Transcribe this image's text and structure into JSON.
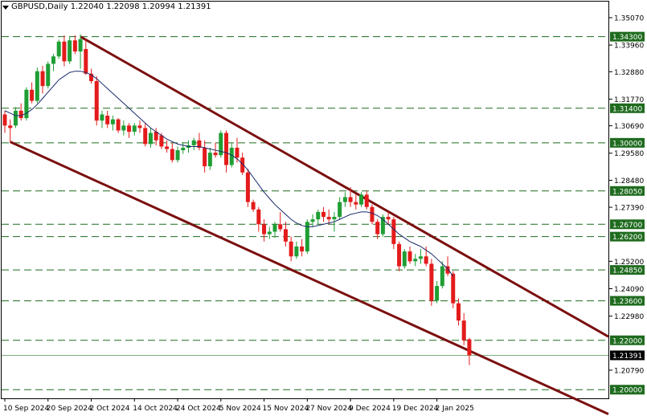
{
  "header": {
    "symbol": "GBPUSD,Daily",
    "ohlc": "1.22040 1.22098 1.20994 1.21391"
  },
  "colors": {
    "bull": "#1f9e34",
    "bear": "#e31b1b",
    "channel": "#7b0f0f",
    "ma": "#1a2a6c",
    "level": "#1f6b1f",
    "current_price": "#7fae7f"
  },
  "chart_data": {
    "type": "candlestick",
    "symbol": "GBPUSD",
    "timeframe": "Daily",
    "last": {
      "open": 1.2204,
      "high": 1.22098,
      "low": 1.20994,
      "close": 1.21391
    },
    "ylim": [
      1.1965,
      1.3572
    ],
    "y_ticks": [
      1.3507,
      1.3396,
      1.3288,
      1.3177,
      1.3069,
      1.2958,
      1.2848,
      1.2739,
      1.252,
      1.2409,
      1.2298,
      1.2079
    ],
    "y_tick_labels": [
      "1.35070",
      "1.33960",
      "1.32880",
      "1.31770",
      "1.30690",
      "1.29580",
      "1.28480",
      "1.27390",
      "1.25200",
      "1.24090",
      "1.22980",
      "1.20790"
    ],
    "x_tick_labels": [
      {
        "label": "10 Sep 2024",
        "bar": 0
      },
      {
        "label": "20 Sep 2024",
        "bar": 8
      },
      {
        "label": "2 Oct 2024",
        "bar": 16
      },
      {
        "label": "14 Oct 2024",
        "bar": 24
      },
      {
        "label": "24 Oct 2024",
        "bar": 32
      },
      {
        "label": "5 Nov 2024",
        "bar": 40
      },
      {
        "label": "15 Nov 2024",
        "bar": 48
      },
      {
        "label": "27 Nov 2024",
        "bar": 56
      },
      {
        "label": "9 Dec 2024",
        "bar": 64
      },
      {
        "label": "19 Dec 2024",
        "bar": 72
      },
      {
        "label": "2 Jan 2025",
        "bar": 80
      }
    ],
    "levels": [
      {
        "value": 1.343,
        "label": "1.34300"
      },
      {
        "value": 1.314,
        "label": "1.31400"
      },
      {
        "value": 1.3,
        "label": "1.30000"
      },
      {
        "value": 1.2805,
        "label": "1.28050"
      },
      {
        "value": 1.267,
        "label": "1.26700"
      },
      {
        "value": 1.262,
        "label": "1.26200"
      },
      {
        "value": 1.2485,
        "label": "1.24850"
      },
      {
        "value": 1.236,
        "label": "1.23600"
      },
      {
        "value": 1.22,
        "label": "1.22000"
      },
      {
        "value": 1.2,
        "label": "1.20000"
      }
    ],
    "current_price": {
      "value": 1.21391,
      "label": "1.21391"
    },
    "channel_lines": [
      {
        "name": "upper",
        "from": {
          "bar": 14,
          "price": 1.343
        },
        "to": {
          "bar": 93,
          "price": 1.2448
        }
      },
      {
        "name": "lower",
        "from": {
          "bar": 1,
          "price": 1.3004
        },
        "to": {
          "bar": 93,
          "price": 1.2088
        }
      }
    ],
    "candles": [
      {
        "o": 1.3115,
        "h": 1.313,
        "l": 1.304,
        "c": 1.307
      },
      {
        "o": 1.307,
        "h": 1.3095,
        "l": 1.3,
        "c": 1.306
      },
      {
        "o": 1.307,
        "h": 1.3145,
        "l": 1.306,
        "c": 1.313
      },
      {
        "o": 1.313,
        "h": 1.316,
        "l": 1.309,
        "c": 1.31
      },
      {
        "o": 1.31,
        "h": 1.3225,
        "l": 1.309,
        "c": 1.3215
      },
      {
        "o": 1.3215,
        "h": 1.3245,
        "l": 1.316,
        "c": 1.317
      },
      {
        "o": 1.317,
        "h": 1.3305,
        "l": 1.316,
        "c": 1.329
      },
      {
        "o": 1.329,
        "h": 1.3312,
        "l": 1.32,
        "c": 1.323
      },
      {
        "o": 1.323,
        "h": 1.333,
        "l": 1.322,
        "c": 1.332
      },
      {
        "o": 1.332,
        "h": 1.336,
        "l": 1.329,
        "c": 1.335
      },
      {
        "o": 1.335,
        "h": 1.3418,
        "l": 1.334,
        "c": 1.341
      },
      {
        "o": 1.341,
        "h": 1.3435,
        "l": 1.331,
        "c": 1.333
      },
      {
        "o": 1.333,
        "h": 1.343,
        "l": 1.332,
        "c": 1.3415
      },
      {
        "o": 1.3415,
        "h": 1.3435,
        "l": 1.336,
        "c": 1.337
      },
      {
        "o": 1.337,
        "h": 1.344,
        "l": 1.33,
        "c": 1.342
      },
      {
        "o": 1.338,
        "h": 1.342,
        "l": 1.3275,
        "c": 1.328
      },
      {
        "o": 1.328,
        "h": 1.33,
        "l": 1.324,
        "c": 1.325
      },
      {
        "o": 1.325,
        "h": 1.327,
        "l": 1.307,
        "c": 1.309
      },
      {
        "o": 1.309,
        "h": 1.313,
        "l": 1.306,
        "c": 1.3115
      },
      {
        "o": 1.311,
        "h": 1.313,
        "l": 1.306,
        "c": 1.3075
      },
      {
        "o": 1.3075,
        "h": 1.311,
        "l": 1.305,
        "c": 1.3095
      },
      {
        "o": 1.3095,
        "h": 1.31,
        "l": 1.304,
        "c": 1.305
      },
      {
        "o": 1.305,
        "h": 1.309,
        "l": 1.303,
        "c": 1.307
      },
      {
        "o": 1.307,
        "h": 1.308,
        "l": 1.302,
        "c": 1.3045
      },
      {
        "o": 1.3045,
        "h": 1.308,
        "l": 1.303,
        "c": 1.307
      },
      {
        "o": 1.307,
        "h": 1.309,
        "l": 1.304,
        "c": 1.306
      },
      {
        "o": 1.306,
        "h": 1.308,
        "l": 1.2985,
        "c": 1.2995
      },
      {
        "o": 1.2995,
        "h": 1.306,
        "l": 1.298,
        "c": 1.304
      },
      {
        "o": 1.3045,
        "h": 1.306,
        "l": 1.299,
        "c": 1.301
      },
      {
        "o": 1.303,
        "h": 1.304,
        "l": 1.2975,
        "c": 1.2985
      },
      {
        "o": 1.2985,
        "h": 1.301,
        "l": 1.296,
        "c": 1.2975
      },
      {
        "o": 1.2975,
        "h": 1.3,
        "l": 1.292,
        "c": 1.293
      },
      {
        "o": 1.293,
        "h": 1.2985,
        "l": 1.292,
        "c": 1.297
      },
      {
        "o": 1.297,
        "h": 1.3,
        "l": 1.2955,
        "c": 1.298
      },
      {
        "o": 1.298,
        "h": 1.301,
        "l": 1.296,
        "c": 1.299
      },
      {
        "o": 1.299,
        "h": 1.302,
        "l": 1.297,
        "c": 1.301
      },
      {
        "o": 1.301,
        "h": 1.304,
        "l": 1.297,
        "c": 1.298
      },
      {
        "o": 1.298,
        "h": 1.301,
        "l": 1.288,
        "c": 1.2905
      },
      {
        "o": 1.2905,
        "h": 1.298,
        "l": 1.289,
        "c": 1.296
      },
      {
        "o": 1.296,
        "h": 1.3,
        "l": 1.294,
        "c": 1.295
      },
      {
        "o": 1.295,
        "h": 1.305,
        "l": 1.294,
        "c": 1.304
      },
      {
        "o": 1.304,
        "h": 1.305,
        "l": 1.288,
        "c": 1.291
      },
      {
        "o": 1.291,
        "h": 1.3,
        "l": 1.29,
        "c": 1.298
      },
      {
        "o": 1.298,
        "h": 1.302,
        "l": 1.292,
        "c": 1.294
      },
      {
        "o": 1.294,
        "h": 1.296,
        "l": 1.287,
        "c": 1.288
      },
      {
        "o": 1.288,
        "h": 1.2895,
        "l": 1.274,
        "c": 1.276
      },
      {
        "o": 1.276,
        "h": 1.277,
        "l": 1.272,
        "c": 1.273
      },
      {
        "o": 1.273,
        "h": 1.274,
        "l": 1.264,
        "c": 1.267
      },
      {
        "o": 1.267,
        "h": 1.269,
        "l": 1.26,
        "c": 1.263
      },
      {
        "o": 1.263,
        "h": 1.266,
        "l": 1.261,
        "c": 1.264
      },
      {
        "o": 1.264,
        "h": 1.268,
        "l": 1.2615,
        "c": 1.267
      },
      {
        "o": 1.267,
        "h": 1.272,
        "l": 1.264,
        "c": 1.265
      },
      {
        "o": 1.265,
        "h": 1.268,
        "l": 1.258,
        "c": 1.26
      },
      {
        "o": 1.26,
        "h": 1.262,
        "l": 1.252,
        "c": 1.254
      },
      {
        "o": 1.254,
        "h": 1.26,
        "l": 1.253,
        "c": 1.258
      },
      {
        "o": 1.258,
        "h": 1.261,
        "l": 1.254,
        "c": 1.256
      },
      {
        "o": 1.256,
        "h": 1.269,
        "l": 1.255,
        "c": 1.268
      },
      {
        "o": 1.268,
        "h": 1.271,
        "l": 1.266,
        "c": 1.269
      },
      {
        "o": 1.269,
        "h": 1.273,
        "l": 1.267,
        "c": 1.272
      },
      {
        "o": 1.272,
        "h": 1.274,
        "l": 1.268,
        "c": 1.27
      },
      {
        "o": 1.27,
        "h": 1.273,
        "l": 1.267,
        "c": 1.269
      },
      {
        "o": 1.269,
        "h": 1.272,
        "l": 1.264,
        "c": 1.27
      },
      {
        "o": 1.27,
        "h": 1.278,
        "l": 1.269,
        "c": 1.276
      },
      {
        "o": 1.276,
        "h": 1.28,
        "l": 1.274,
        "c": 1.278
      },
      {
        "o": 1.278,
        "h": 1.282,
        "l": 1.274,
        "c": 1.276
      },
      {
        "o": 1.276,
        "h": 1.279,
        "l": 1.273,
        "c": 1.275
      },
      {
        "o": 1.275,
        "h": 1.28,
        "l": 1.274,
        "c": 1.279
      },
      {
        "o": 1.279,
        "h": 1.2805,
        "l": 1.273,
        "c": 1.274
      },
      {
        "o": 1.274,
        "h": 1.275,
        "l": 1.267,
        "c": 1.268
      },
      {
        "o": 1.268,
        "h": 1.269,
        "l": 1.261,
        "c": 1.263
      },
      {
        "o": 1.263,
        "h": 1.271,
        "l": 1.262,
        "c": 1.27
      },
      {
        "o": 1.27,
        "h": 1.272,
        "l": 1.267,
        "c": 1.269
      },
      {
        "o": 1.269,
        "h": 1.27,
        "l": 1.257,
        "c": 1.259
      },
      {
        "o": 1.259,
        "h": 1.26,
        "l": 1.248,
        "c": 1.25
      },
      {
        "o": 1.25,
        "h": 1.257,
        "l": 1.249,
        "c": 1.256
      },
      {
        "o": 1.256,
        "h": 1.258,
        "l": 1.251,
        "c": 1.252
      },
      {
        "o": 1.252,
        "h": 1.255,
        "l": 1.25,
        "c": 1.253
      },
      {
        "o": 1.253,
        "h": 1.257,
        "l": 1.251,
        "c": 1.254
      },
      {
        "o": 1.254,
        "h": 1.258,
        "l": 1.25,
        "c": 1.251
      },
      {
        "o": 1.251,
        "h": 1.253,
        "l": 1.234,
        "c": 1.236
      },
      {
        "o": 1.236,
        "h": 1.244,
        "l": 1.235,
        "c": 1.242
      },
      {
        "o": 1.242,
        "h": 1.252,
        "l": 1.241,
        "c": 1.25
      },
      {
        "o": 1.25,
        "h": 1.254,
        "l": 1.246,
        "c": 1.247
      },
      {
        "o": 1.247,
        "h": 1.248,
        "l": 1.233,
        "c": 1.235
      },
      {
        "o": 1.235,
        "h": 1.237,
        "l": 1.226,
        "c": 1.228
      },
      {
        "o": 1.228,
        "h": 1.231,
        "l": 1.218,
        "c": 1.22
      },
      {
        "o": 1.2204,
        "h": 1.22098,
        "l": 1.20994,
        "c": 1.21391
      }
    ],
    "moving_average": {
      "name": "",
      "values": [
        1.313,
        1.312,
        1.311,
        1.311,
        1.312,
        1.3135,
        1.3155,
        1.318,
        1.3205,
        1.323,
        1.3255,
        1.327,
        1.3285,
        1.329,
        1.329,
        1.3285,
        1.3275,
        1.326,
        1.324,
        1.322,
        1.32,
        1.318,
        1.316,
        1.314,
        1.312,
        1.31,
        1.308,
        1.306,
        1.3045,
        1.303,
        1.3015,
        1.3005,
        1.2995,
        1.299,
        1.2985,
        1.2985,
        1.2985,
        1.298,
        1.2975,
        1.297,
        1.2965,
        1.296,
        1.295,
        1.2935,
        1.2915,
        1.289,
        1.286,
        1.283,
        1.28,
        1.2775,
        1.275,
        1.273,
        1.271,
        1.269,
        1.2675,
        1.2665,
        1.266,
        1.266,
        1.2665,
        1.267,
        1.2675,
        1.268,
        1.269,
        1.27,
        1.271,
        1.2715,
        1.272,
        1.272,
        1.2715,
        1.2705,
        1.269,
        1.267,
        1.265,
        1.263,
        1.2615,
        1.26,
        1.259,
        1.258,
        1.2565,
        1.255,
        1.253,
        1.251,
        1.249,
        1.246
      ]
    }
  }
}
